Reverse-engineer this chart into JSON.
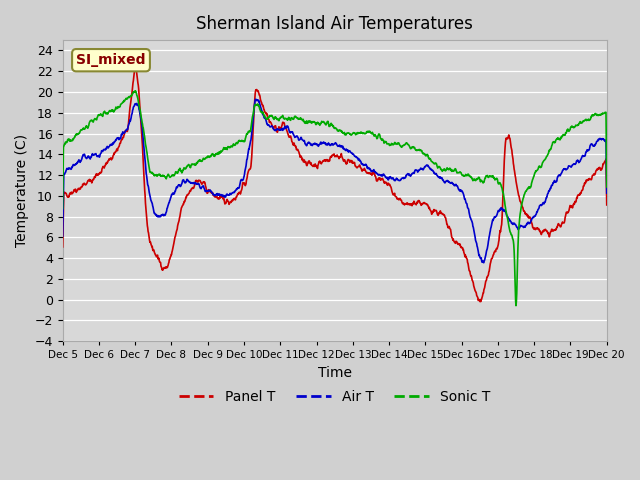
{
  "title": "Sherman Island Air Temperatures",
  "xlabel": "Time",
  "ylabel": "Temperature (C)",
  "ylim": [
    -4,
    25
  ],
  "yticks": [
    -4,
    -2,
    0,
    2,
    4,
    6,
    8,
    10,
    12,
    14,
    16,
    18,
    20,
    22,
    24
  ],
  "xtick_labels": [
    "Dec 5",
    "Dec 6",
    "Dec 7",
    "Dec 8",
    "Dec 9",
    "Dec 10",
    "Dec 11",
    "Dec 12",
    "Dec 13",
    "Dec 14",
    "Dec 15",
    "Dec 16",
    "Dec 17",
    "Dec 18",
    "Dec 19",
    "Dec 20"
  ],
  "colors": {
    "panel_t": "#cc0000",
    "air_t": "#0000cc",
    "sonic_t": "#00aa00",
    "background": "#d8d8d8",
    "grid": "#ffffff",
    "annotation_bg": "#ffffcc",
    "annotation_text": "#880000",
    "annotation_border": "#888833"
  },
  "legend_label": "SI_mixed",
  "line_width": 1.2,
  "figsize": [
    6.4,
    4.8
  ],
  "dpi": 100
}
